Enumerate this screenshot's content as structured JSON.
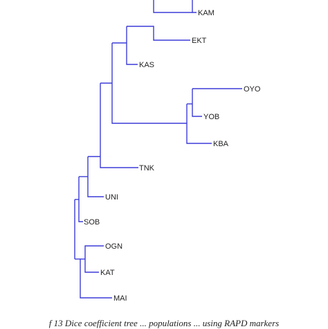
{
  "figure": {
    "line_color": "#3b3bd9",
    "label_color": "#222222",
    "caption": "f 13 Dice coefficient tree ... populations ... using RAPD markers"
  },
  "leaves": {
    "KAM": "KAM",
    "EKT": "EKT",
    "KAS": "KAS",
    "OYO": "OYO",
    "YOB": "YOB",
    "KBA": "KBA",
    "TNK": "TNK",
    "UNI": "UNI",
    "SOB": "SOB",
    "OGN": "OGN",
    "KAT": "KAT",
    "MAI": "MAI"
  }
}
